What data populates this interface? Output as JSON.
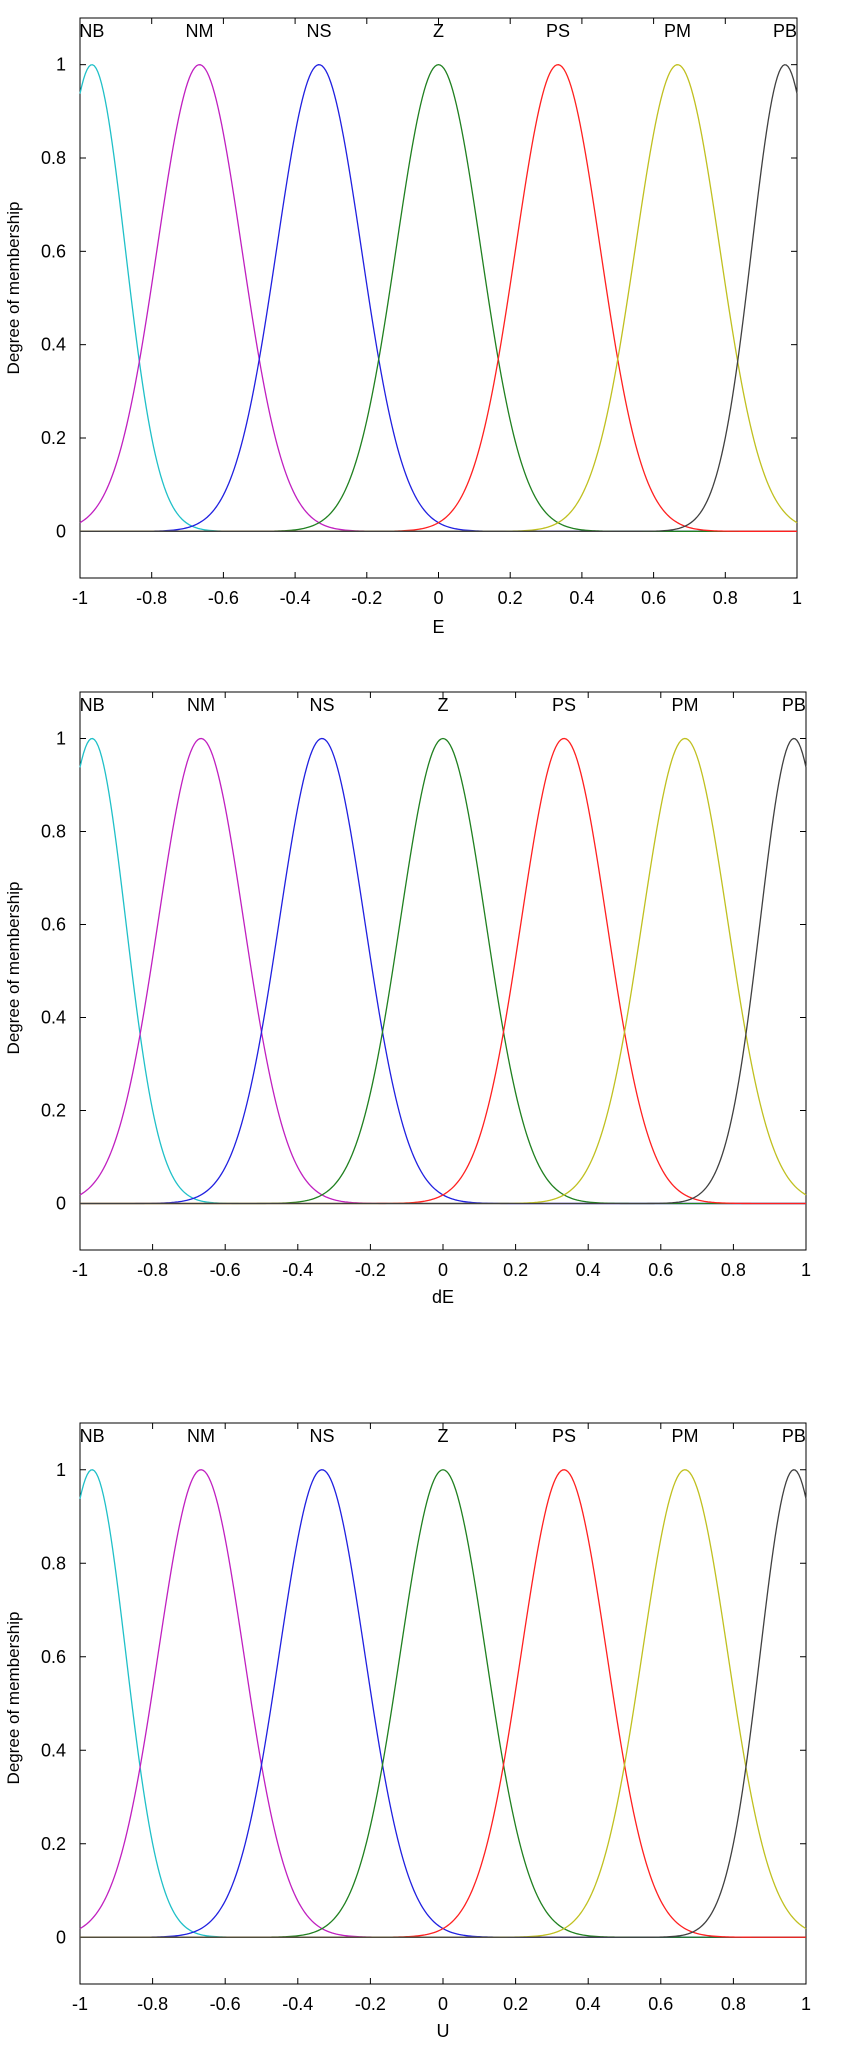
{
  "chart_data": [
    {
      "type": "line",
      "xlabel": "E",
      "ylabel": "Degree of membership",
      "xlim": [
        -1,
        1
      ],
      "ylim": [
        -0.1,
        1.1
      ],
      "xticks": [
        "-1",
        "-0.8",
        "-0.6",
        "-0.4",
        "-0.2",
        "0",
        "0.2",
        "0.4",
        "0.6",
        "0.8",
        "1"
      ],
      "yticks": [
        "0",
        "0.2",
        "0.4",
        "0.6",
        "0.8",
        "1"
      ],
      "membership_function": "gaussian",
      "series": [
        {
          "name": "NB",
          "center": -0.9667,
          "sigma": 0.093,
          "peak": 1,
          "color": "#20c0c8"
        },
        {
          "name": "NM",
          "center": -0.6667,
          "sigma": 0.118,
          "peak": 1,
          "color": "#c020c0"
        },
        {
          "name": "NS",
          "center": -0.3333,
          "sigma": 0.118,
          "peak": 1,
          "color": "#2020e0"
        },
        {
          "name": "Z",
          "center": 0,
          "sigma": 0.118,
          "peak": 1,
          "color": "#208020"
        },
        {
          "name": "PS",
          "center": 0.3333,
          "sigma": 0.118,
          "peak": 1,
          "color": "#ff2020"
        },
        {
          "name": "PM",
          "center": 0.6667,
          "sigma": 0.118,
          "peak": 1,
          "color": "#c0c020"
        },
        {
          "name": "PB",
          "center": 0.9667,
          "sigma": 0.093,
          "peak": 1,
          "color": "#404040"
        }
      ]
    },
    {
      "type": "line",
      "xlabel": "dE",
      "ylabel": "Degree of membership",
      "xlim": [
        -1,
        1
      ],
      "ylim": [
        -0.1,
        1.1
      ],
      "xticks": [
        "-1",
        "-0.8",
        "-0.6",
        "-0.4",
        "-0.2",
        "0",
        "0.2",
        "0.4",
        "0.6",
        "0.8",
        "1"
      ],
      "yticks": [
        "0",
        "0.2",
        "0.4",
        "0.6",
        "0.8",
        "1"
      ],
      "membership_function": "gaussian",
      "series": [
        {
          "name": "NB",
          "center": -0.9667,
          "sigma": 0.093,
          "peak": 1,
          "color": "#20c0c8"
        },
        {
          "name": "NM",
          "center": -0.6667,
          "sigma": 0.118,
          "peak": 1,
          "color": "#c020c0"
        },
        {
          "name": "NS",
          "center": -0.3333,
          "sigma": 0.118,
          "peak": 1,
          "color": "#2020e0"
        },
        {
          "name": "Z",
          "center": 0,
          "sigma": 0.118,
          "peak": 1,
          "color": "#208020"
        },
        {
          "name": "PS",
          "center": 0.3333,
          "sigma": 0.118,
          "peak": 1,
          "color": "#ff2020"
        },
        {
          "name": "PM",
          "center": 0.6667,
          "sigma": 0.118,
          "peak": 1,
          "color": "#c0c020"
        },
        {
          "name": "PB",
          "center": 0.9667,
          "sigma": 0.093,
          "peak": 1,
          "color": "#404040"
        }
      ]
    },
    {
      "type": "line",
      "xlabel": "U",
      "ylabel": "Degree of membership",
      "xlim": [
        -1,
        1
      ],
      "ylim": [
        -0.1,
        1.1
      ],
      "xticks": [
        "-1",
        "-0.8",
        "-0.6",
        "-0.4",
        "-0.2",
        "0",
        "0.2",
        "0.4",
        "0.6",
        "0.8",
        "1"
      ],
      "yticks": [
        "0",
        "0.2",
        "0.4",
        "0.6",
        "0.8",
        "1"
      ],
      "membership_function": "gaussian",
      "series": [
        {
          "name": "NB",
          "center": -0.9667,
          "sigma": 0.093,
          "peak": 1,
          "color": "#20c0c8"
        },
        {
          "name": "NM",
          "center": -0.6667,
          "sigma": 0.118,
          "peak": 1,
          "color": "#c020c0"
        },
        {
          "name": "NS",
          "center": -0.3333,
          "sigma": 0.118,
          "peak": 1,
          "color": "#2020e0"
        },
        {
          "name": "Z",
          "center": 0,
          "sigma": 0.118,
          "peak": 1,
          "color": "#208020"
        },
        {
          "name": "PS",
          "center": 0.3333,
          "sigma": 0.118,
          "peak": 1,
          "color": "#ff2020"
        },
        {
          "name": "PM",
          "center": 0.6667,
          "sigma": 0.118,
          "peak": 1,
          "color": "#c0c020"
        },
        {
          "name": "PB",
          "center": 0.9667,
          "sigma": 0.093,
          "peak": 1,
          "color": "#404040"
        }
      ]
    }
  ]
}
